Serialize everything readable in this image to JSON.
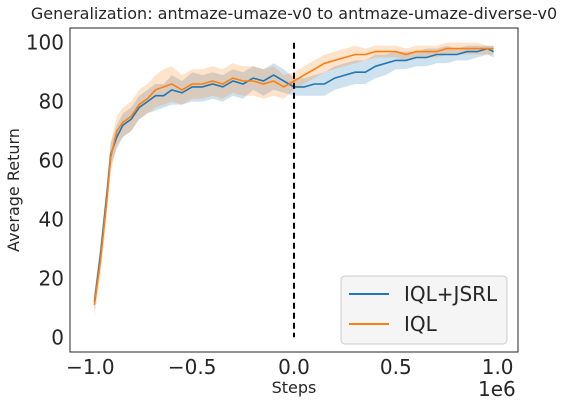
{
  "chart_data": {
    "type": "line",
    "title": "Generalization: antmaze-umaze-v0 to antmaze-umaze-diverse-v0",
    "xlabel": "Steps",
    "ylabel": "Average Return",
    "x_offset_label": "1e6",
    "xlim": [
      -1.1,
      1.1
    ],
    "ylim": [
      -5,
      105
    ],
    "xticks": [
      -1.0,
      -0.5,
      0.0,
      0.5,
      1.0
    ],
    "xtick_labels": [
      "−1.0",
      "−0.5",
      "0.0",
      "0.5",
      "1.0"
    ],
    "yticks": [
      0,
      20,
      40,
      60,
      80,
      100
    ],
    "ytick_labels": [
      "0",
      "20",
      "40",
      "60",
      "80",
      "100"
    ],
    "grid": false,
    "legend_position": "bottom-right",
    "vline": {
      "x": 0.0,
      "style": "dashed",
      "color": "#000000"
    },
    "series": [
      {
        "name": "IQL+JSRL",
        "color": "#1f77b4",
        "x": [
          -0.98,
          -0.95,
          -0.92,
          -0.9,
          -0.87,
          -0.84,
          -0.8,
          -0.76,
          -0.72,
          -0.68,
          -0.64,
          -0.6,
          -0.55,
          -0.5,
          -0.45,
          -0.4,
          -0.35,
          -0.3,
          -0.25,
          -0.2,
          -0.15,
          -0.1,
          -0.05,
          0.0,
          0.05,
          0.1,
          0.15,
          0.2,
          0.25,
          0.3,
          0.35,
          0.4,
          0.45,
          0.5,
          0.55,
          0.6,
          0.65,
          0.7,
          0.75,
          0.8,
          0.85,
          0.9,
          0.95,
          0.98
        ],
        "values": [
          12,
          28,
          48,
          62,
          68,
          72,
          74,
          78,
          80,
          82,
          82,
          84,
          83,
          85,
          85,
          86,
          85,
          87,
          86,
          88,
          87,
          89,
          87,
          85,
          85,
          86,
          86,
          88,
          89,
          90,
          90,
          92,
          93,
          94,
          94,
          95,
          95,
          96,
          96,
          96,
          97,
          97,
          98,
          97
        ],
        "lower": [
          9,
          24,
          44,
          58,
          64,
          68,
          70,
          74,
          76,
          77,
          78,
          79,
          79,
          80,
          80,
          81,
          80,
          82,
          81,
          84,
          82,
          84,
          83,
          82,
          82,
          82,
          82,
          84,
          85,
          86,
          86,
          88,
          89,
          91,
          91,
          92,
          92,
          93,
          93,
          94,
          94,
          95,
          96,
          95
        ],
        "upper": [
          15,
          32,
          52,
          66,
          72,
          76,
          78,
          82,
          84,
          86,
          86,
          89,
          87,
          90,
          89,
          90,
          89,
          91,
          90,
          92,
          91,
          93,
          91,
          88,
          88,
          89,
          90,
          92,
          93,
          94,
          94,
          96,
          96,
          97,
          97,
          97,
          98,
          98,
          99,
          98,
          99,
          99,
          99,
          99
        ]
      },
      {
        "name": "IQL",
        "color": "#ff7f0e",
        "x": [
          -0.98,
          -0.95,
          -0.92,
          -0.9,
          -0.87,
          -0.84,
          -0.8,
          -0.76,
          -0.72,
          -0.68,
          -0.64,
          -0.6,
          -0.55,
          -0.5,
          -0.45,
          -0.4,
          -0.35,
          -0.3,
          -0.25,
          -0.2,
          -0.15,
          -0.1,
          -0.05,
          0.0,
          0.05,
          0.1,
          0.15,
          0.2,
          0.25,
          0.3,
          0.35,
          0.4,
          0.45,
          0.5,
          0.55,
          0.6,
          0.65,
          0.7,
          0.75,
          0.8,
          0.85,
          0.9,
          0.95,
          0.98
        ],
        "values": [
          11,
          26,
          46,
          61,
          70,
          73,
          75,
          79,
          81,
          84,
          85,
          86,
          84,
          86,
          86,
          87,
          86,
          88,
          87,
          87,
          86,
          87,
          85,
          87,
          89,
          91,
          93,
          94,
          95,
          96,
          96,
          97,
          97,
          97,
          96,
          97,
          97,
          97,
          98,
          98,
          98,
          98,
          98,
          98
        ],
        "lower": [
          7,
          21,
          41,
          56,
          65,
          68,
          70,
          74,
          76,
          78,
          79,
          80,
          79,
          81,
          81,
          82,
          81,
          83,
          82,
          82,
          81,
          82,
          81,
          84,
          86,
          88,
          90,
          91,
          92,
          93,
          94,
          95,
          95,
          95,
          94,
          95,
          95,
          95,
          96,
          96,
          96,
          96,
          96,
          96
        ],
        "upper": [
          15,
          31,
          51,
          66,
          75,
          78,
          80,
          84,
          86,
          89,
          91,
          92,
          89,
          91,
          91,
          92,
          91,
          93,
          92,
          92,
          91,
          92,
          89,
          90,
          92,
          94,
          96,
          97,
          98,
          99,
          98,
          99,
          99,
          99,
          98,
          99,
          99,
          99,
          100,
          100,
          100,
          100,
          99,
          99
        ]
      }
    ]
  }
}
